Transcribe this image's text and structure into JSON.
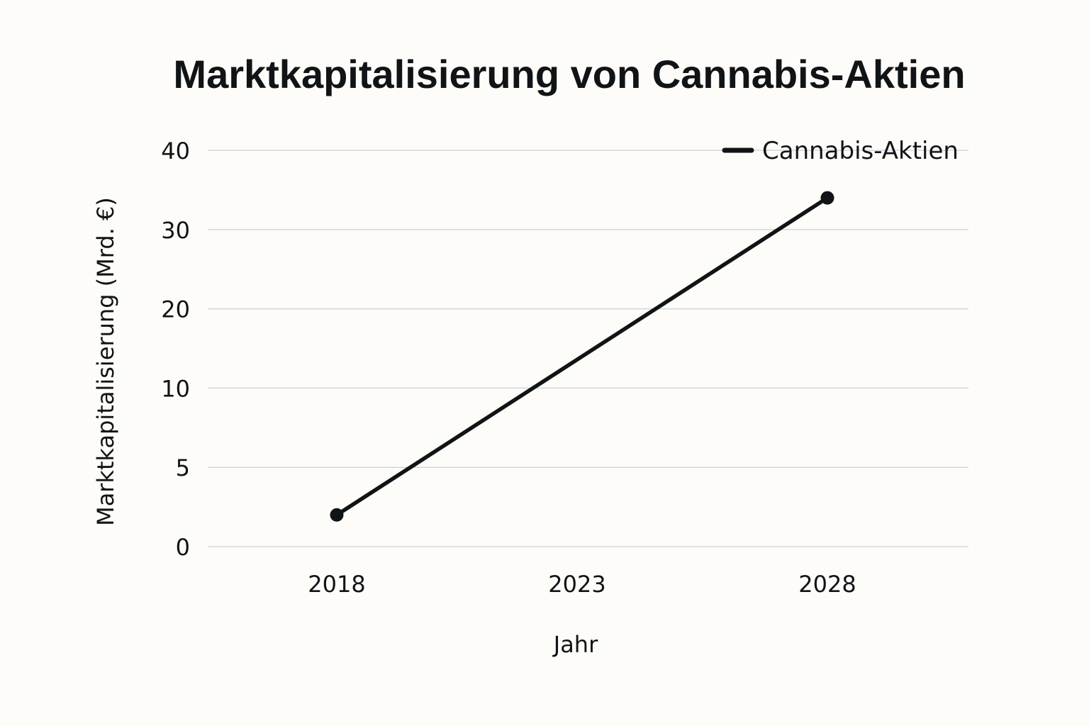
{
  "chart_data": {
    "type": "line",
    "title": "Marktkapitalisierung von Cannabis-Aktien",
    "xlabel": "Jahr",
    "ylabel": "Marktkapitalisierung (Mrd. €)",
    "categories": [
      "2018",
      "2023",
      "2028"
    ],
    "y_ticks": [
      "0",
      "5",
      "10",
      "20",
      "30",
      "40"
    ],
    "series": [
      {
        "name": "Cannabis-Aktien",
        "points": [
          {
            "x": "2018",
            "y": 2
          },
          {
            "x": "2028",
            "y": 34
          }
        ]
      }
    ],
    "legend_position": "top-right",
    "grid": true,
    "colors": {
      "line": "#111416",
      "grid": "#d4d6de",
      "background": "#fdfcf8"
    }
  }
}
